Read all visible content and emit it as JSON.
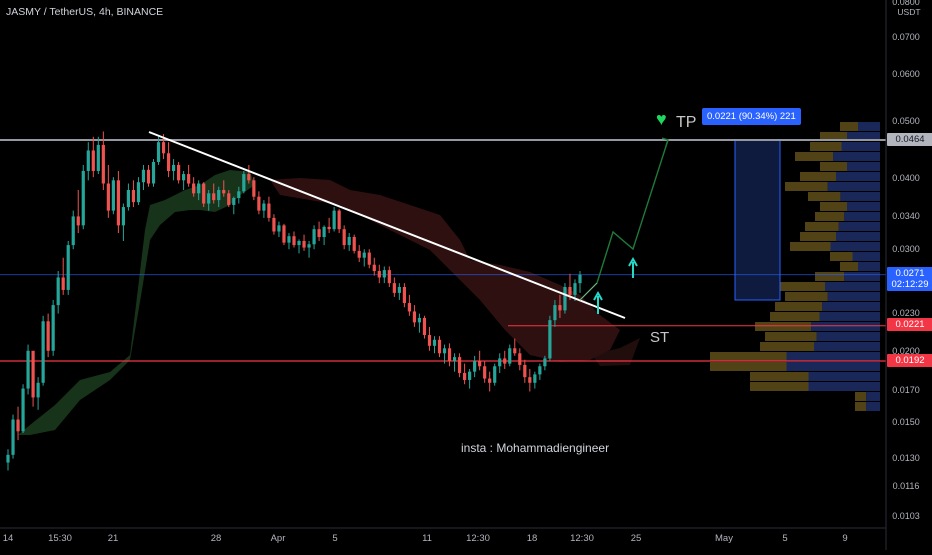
{
  "symbol_title": "JASMY / TetherUS, 4h, BINANCE",
  "watermark_text": "insta : Mohammadiengineer",
  "annotations": {
    "st": "ST",
    "tp": "TP",
    "heart": "♥"
  },
  "measure_label": "0.0221 (90.34%) 221",
  "currency": "USDT",
  "price_boxes": [
    {
      "value": "0.0464",
      "bg": "#b2b5be",
      "fg": "#131722"
    },
    {
      "value": "0.0271",
      "bg": "#2962ff",
      "fg": "#ffffff",
      "sub": "02:12:29"
    },
    {
      "value": "0.0221",
      "bg": "#f23645",
      "fg": "#ffffff"
    },
    {
      "value": "0.0192",
      "bg": "#f23645",
      "fg": "#ffffff"
    }
  ],
  "colors": {
    "up": "#26a69a",
    "down": "#ef5350",
    "white_trend": "#ffffff",
    "arrow": "#26d8c5",
    "projection": "#1f7a3a",
    "hline_grey": "#9598a1",
    "hline_red": "#f23645",
    "hline_blue": "#2962ff"
  },
  "chart_data": {
    "type": "candlestick",
    "y_scale": "log",
    "y_ticks": [
      "0.0800",
      "0.0700",
      "0.0600",
      "0.0500",
      "0.0400",
      "0.0340",
      "0.0300",
      "0.0230",
      "0.0200",
      "0.0170",
      "0.0150",
      "0.0130",
      "0.0116",
      "0.0103"
    ],
    "x_ticks": [
      "14",
      "15:30",
      "21",
      "28",
      "Apr",
      "5",
      "11",
      "12:30",
      "18",
      "12:30",
      "25",
      "May",
      "5",
      "9"
    ],
    "horizontal_levels": [
      0.0464,
      0.0221,
      0.0192,
      0.0271
    ],
    "trendline": {
      "from": {
        "x": "24",
        "y": 0.0475
      },
      "to": {
        "x": "25",
        "y": 0.0223
      }
    },
    "target": 0.0464,
    "candles_ohlc": [
      [
        0.0128,
        0.0135,
        0.0124,
        0.0132
      ],
      [
        0.0132,
        0.0155,
        0.013,
        0.0152
      ],
      [
        0.0152,
        0.016,
        0.014,
        0.0145
      ],
      [
        0.0145,
        0.0175,
        0.0144,
        0.0172
      ],
      [
        0.0172,
        0.0205,
        0.0168,
        0.02
      ],
      [
        0.02,
        0.0195,
        0.016,
        0.0166
      ],
      [
        0.0166,
        0.018,
        0.0158,
        0.0176
      ],
      [
        0.0176,
        0.023,
        0.0174,
        0.0225
      ],
      [
        0.0225,
        0.0232,
        0.0195,
        0.02
      ],
      [
        0.02,
        0.0245,
        0.0196,
        0.024
      ],
      [
        0.024,
        0.0275,
        0.0232,
        0.0268
      ],
      [
        0.0268,
        0.029,
        0.025,
        0.0255
      ],
      [
        0.0255,
        0.031,
        0.025,
        0.0305
      ],
      [
        0.0305,
        0.035,
        0.03,
        0.0342
      ],
      [
        0.0342,
        0.038,
        0.032,
        0.033
      ],
      [
        0.033,
        0.042,
        0.0325,
        0.041
      ],
      [
        0.041,
        0.046,
        0.0395,
        0.0445
      ],
      [
        0.0445,
        0.047,
        0.04,
        0.041
      ],
      [
        0.041,
        0.047,
        0.0405,
        0.0455
      ],
      [
        0.0455,
        0.048,
        0.038,
        0.039
      ],
      [
        0.039,
        0.042,
        0.034,
        0.035
      ],
      [
        0.035,
        0.04,
        0.0345,
        0.0395
      ],
      [
        0.0395,
        0.041,
        0.032,
        0.033
      ],
      [
        0.033,
        0.036,
        0.031,
        0.0355
      ],
      [
        0.0355,
        0.039,
        0.035,
        0.038
      ],
      [
        0.038,
        0.0395,
        0.0355,
        0.0362
      ],
      [
        0.0362,
        0.04,
        0.0358,
        0.0392
      ],
      [
        0.0392,
        0.042,
        0.038,
        0.0412
      ],
      [
        0.0412,
        0.042,
        0.0385,
        0.039
      ],
      [
        0.039,
        0.043,
        0.0385,
        0.0425
      ],
      [
        0.0425,
        0.047,
        0.042,
        0.046
      ],
      [
        0.046,
        0.0475,
        0.043,
        0.044
      ],
      [
        0.044,
        0.046,
        0.04,
        0.041
      ],
      [
        0.041,
        0.043,
        0.0395,
        0.042
      ],
      [
        0.042,
        0.0425,
        0.039,
        0.0395
      ],
      [
        0.0395,
        0.041,
        0.038,
        0.0405
      ],
      [
        0.0405,
        0.042,
        0.0385,
        0.039
      ],
      [
        0.039,
        0.04,
        0.037,
        0.0375
      ],
      [
        0.0375,
        0.0395,
        0.0365,
        0.039
      ],
      [
        0.039,
        0.0392,
        0.0355,
        0.036
      ],
      [
        0.036,
        0.038,
        0.035,
        0.0375
      ],
      [
        0.0375,
        0.039,
        0.036,
        0.0365
      ],
      [
        0.0365,
        0.0385,
        0.0355,
        0.038
      ],
      [
        0.038,
        0.0395,
        0.037,
        0.0375
      ],
      [
        0.0375,
        0.038,
        0.0355,
        0.0358
      ],
      [
        0.0358,
        0.037,
        0.0345,
        0.0368
      ],
      [
        0.0368,
        0.0385,
        0.036,
        0.0378
      ],
      [
        0.0378,
        0.041,
        0.0375,
        0.0405
      ],
      [
        0.0405,
        0.042,
        0.039,
        0.0395
      ],
      [
        0.0395,
        0.04,
        0.0365,
        0.037
      ],
      [
        0.037,
        0.0378,
        0.0345,
        0.035
      ],
      [
        0.035,
        0.0365,
        0.034,
        0.036
      ],
      [
        0.036,
        0.037,
        0.0335,
        0.034
      ],
      [
        0.034,
        0.0345,
        0.0318,
        0.0322
      ],
      [
        0.0322,
        0.0335,
        0.0315,
        0.033
      ],
      [
        0.033,
        0.0332,
        0.0305,
        0.0308
      ],
      [
        0.0308,
        0.032,
        0.03,
        0.0316
      ],
      [
        0.0316,
        0.0322,
        0.0302,
        0.0305
      ],
      [
        0.0305,
        0.0312,
        0.0295,
        0.031
      ],
      [
        0.031,
        0.0318,
        0.0298,
        0.0302
      ],
      [
        0.0302,
        0.031,
        0.029,
        0.0306
      ],
      [
        0.0306,
        0.033,
        0.03,
        0.0325
      ],
      [
        0.0325,
        0.0335,
        0.031,
        0.0315
      ],
      [
        0.0315,
        0.033,
        0.0305,
        0.0328
      ],
      [
        0.0328,
        0.034,
        0.032,
        0.0325
      ],
      [
        0.0325,
        0.0355,
        0.0322,
        0.035
      ],
      [
        0.035,
        0.0352,
        0.032,
        0.0325
      ],
      [
        0.0325,
        0.033,
        0.03,
        0.0305
      ],
      [
        0.0305,
        0.032,
        0.0298,
        0.0315
      ],
      [
        0.0315,
        0.0318,
        0.0295,
        0.0298
      ],
      [
        0.0298,
        0.0305,
        0.0285,
        0.029
      ],
      [
        0.029,
        0.03,
        0.028,
        0.0296
      ],
      [
        0.0296,
        0.03,
        0.0278,
        0.0282
      ],
      [
        0.0282,
        0.029,
        0.027,
        0.0275
      ],
      [
        0.0275,
        0.0282,
        0.0262,
        0.0268
      ],
      [
        0.0268,
        0.028,
        0.0262,
        0.0276
      ],
      [
        0.0276,
        0.028,
        0.0258,
        0.0262
      ],
      [
        0.0262,
        0.0268,
        0.0248,
        0.0252
      ],
      [
        0.0252,
        0.0262,
        0.0245,
        0.0258
      ],
      [
        0.0258,
        0.0262,
        0.0238,
        0.0242
      ],
      [
        0.0242,
        0.025,
        0.023,
        0.0234
      ],
      [
        0.0234,
        0.024,
        0.022,
        0.0224
      ],
      [
        0.0224,
        0.0232,
        0.0215,
        0.0228
      ],
      [
        0.0228,
        0.023,
        0.021,
        0.0213
      ],
      [
        0.0213,
        0.022,
        0.02,
        0.0204
      ],
      [
        0.0204,
        0.0212,
        0.0198,
        0.0209
      ],
      [
        0.0209,
        0.0212,
        0.0195,
        0.0198
      ],
      [
        0.0198,
        0.0205,
        0.019,
        0.0202
      ],
      [
        0.0202,
        0.0206,
        0.0188,
        0.0192
      ],
      [
        0.0192,
        0.0198,
        0.0184,
        0.0195
      ],
      [
        0.0195,
        0.0198,
        0.018,
        0.0183
      ],
      [
        0.0183,
        0.019,
        0.0175,
        0.0178
      ],
      [
        0.0178,
        0.0186,
        0.0172,
        0.0184
      ],
      [
        0.0184,
        0.0196,
        0.018,
        0.0192
      ],
      [
        0.0192,
        0.02,
        0.0185,
        0.0188
      ],
      [
        0.0188,
        0.0192,
        0.0176,
        0.0179
      ],
      [
        0.0179,
        0.0184,
        0.017,
        0.0176
      ],
      [
        0.0176,
        0.019,
        0.0174,
        0.0188
      ],
      [
        0.0188,
        0.0198,
        0.0183,
        0.0194
      ],
      [
        0.0194,
        0.02,
        0.0186,
        0.019
      ],
      [
        0.019,
        0.0205,
        0.0188,
        0.0202
      ],
      [
        0.0202,
        0.021,
        0.0196,
        0.0198
      ],
      [
        0.0198,
        0.0202,
        0.0185,
        0.0189
      ],
      [
        0.0189,
        0.0193,
        0.0176,
        0.018
      ],
      [
        0.018,
        0.0186,
        0.017,
        0.0176
      ],
      [
        0.0176,
        0.0184,
        0.0172,
        0.0182
      ],
      [
        0.0182,
        0.019,
        0.0178,
        0.0188
      ],
      [
        0.0188,
        0.0196,
        0.0185,
        0.0194
      ],
      [
        0.0194,
        0.023,
        0.0192,
        0.0226
      ],
      [
        0.0226,
        0.0245,
        0.022,
        0.024
      ],
      [
        0.024,
        0.025,
        0.0228,
        0.0235
      ],
      [
        0.0235,
        0.0262,
        0.0232,
        0.0258
      ],
      [
        0.0258,
        0.0272,
        0.0245,
        0.025
      ],
      [
        0.025,
        0.0266,
        0.0244,
        0.0262
      ],
      [
        0.0262,
        0.0275,
        0.0252,
        0.0271
      ]
    ]
  }
}
